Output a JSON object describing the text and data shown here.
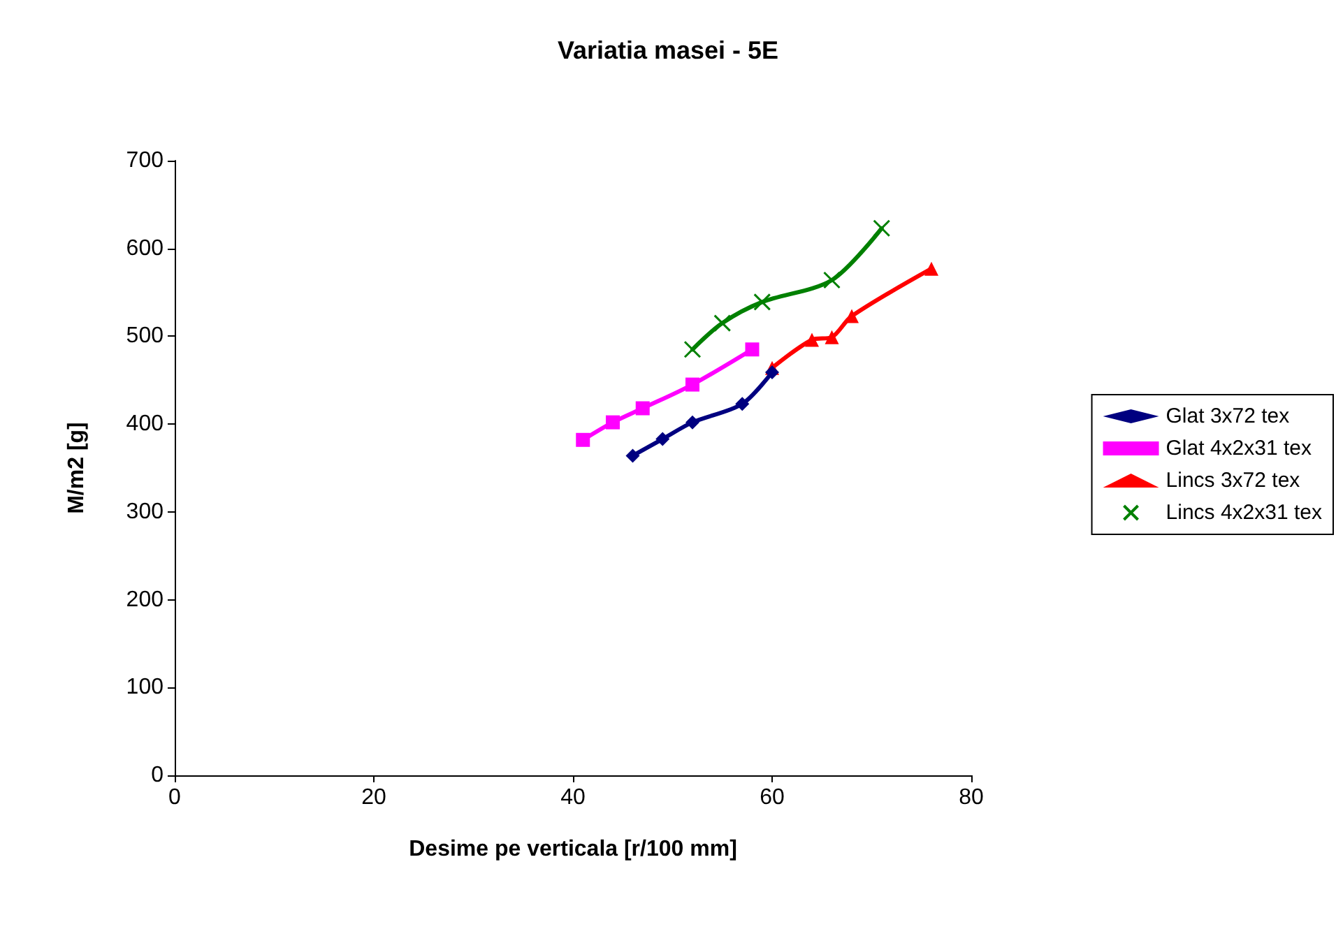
{
  "chart_data": {
    "type": "line",
    "title": "Variatia masei - 5E",
    "xlabel": "Desime pe verticala [r/100 mm]",
    "ylabel": "M/m2 [g]",
    "xlim": [
      0,
      80
    ],
    "xticks": [
      0,
      20,
      40,
      60,
      80
    ],
    "ylim": [
      0,
      700
    ],
    "yticks": [
      0,
      100,
      200,
      300,
      400,
      500,
      600,
      700
    ],
    "grid": false,
    "legend": "right",
    "line_style": "solid",
    "series": [
      {
        "name": "Glat 3x72 tex",
        "color": "#000080",
        "marker": "diamond",
        "x": [
          46,
          49,
          52,
          57,
          60
        ],
        "values": [
          364,
          383,
          402,
          423,
          459
        ]
      },
      {
        "name": "Glat 4x2x31 tex",
        "color": "#ff00ff",
        "marker": "square",
        "x": [
          41,
          44,
          47,
          52,
          58
        ],
        "values": [
          382,
          402,
          418,
          445,
          485
        ]
      },
      {
        "name": "Lincs 3x72 tex",
        "color": "#ff0000",
        "marker": "triangle",
        "x": [
          60,
          64,
          66,
          68,
          76
        ],
        "values": [
          464,
          496,
          499,
          523,
          577
        ]
      },
      {
        "name": "Lincs 4x2x31 tex",
        "color": "#008000",
        "marker": "cross",
        "x": [
          52,
          55,
          59,
          66,
          71
        ],
        "values": [
          485,
          515,
          539,
          564,
          623
        ]
      }
    ]
  }
}
